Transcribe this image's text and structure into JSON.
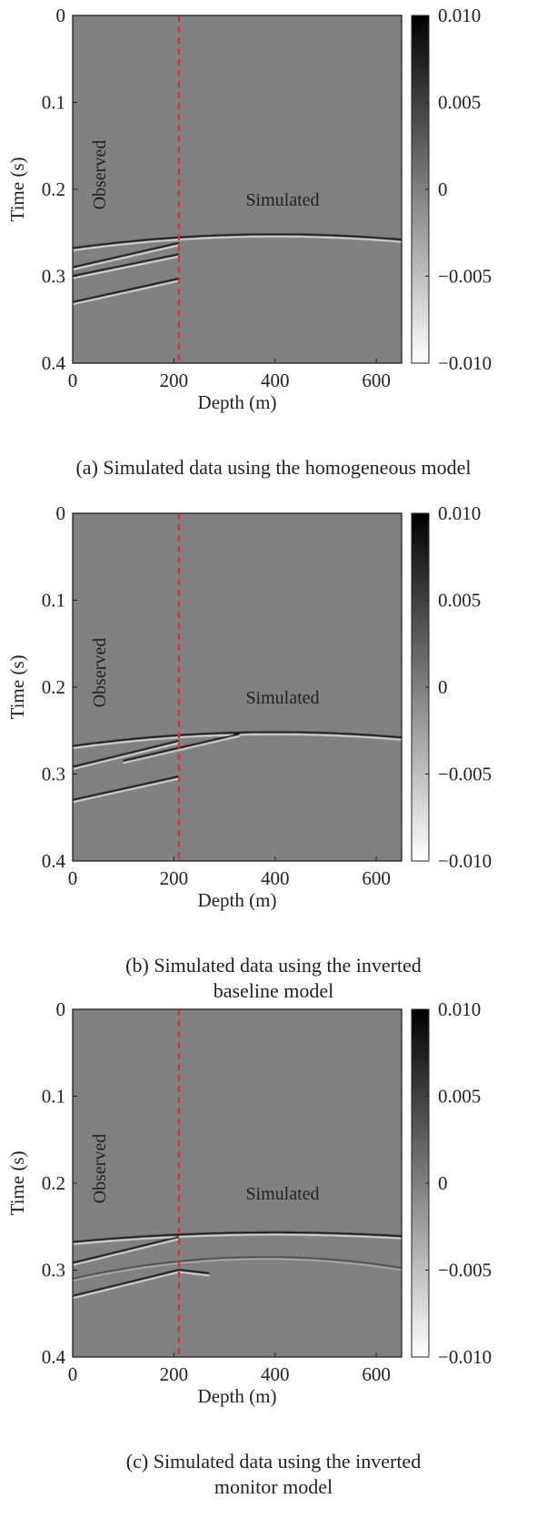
{
  "colors": {
    "background": "#808182",
    "axis": "#231f20",
    "marker": "#e0302a"
  },
  "chart_data": [
    {
      "type": "heatmap",
      "title": "",
      "xlabel": "Depth (m)",
      "ylabel": "Time (s)",
      "xlim": [
        0,
        650
      ],
      "ylim": [
        0.4,
        0
      ],
      "xticks": [
        "0",
        "200",
        "400",
        "600"
      ],
      "xtick_values": [
        0,
        200,
        400,
        600
      ],
      "yticks": [
        "0",
        "0.1",
        "0.2",
        "0.3",
        "0.4"
      ],
      "ytick_values": [
        0,
        0.1,
        0.2,
        0.3,
        0.4
      ],
      "colorbar": {
        "range": [
          -0.01,
          0.01
        ],
        "ticks": [
          "0.010",
          "0.005",
          "0",
          "−0.005",
          "−0.010"
        ],
        "tick_values": [
          0.01,
          0.005,
          0,
          -0.005,
          -0.01
        ]
      },
      "divider_depth": 210,
      "region_labels": {
        "left": "Observed",
        "right": "Simulated"
      },
      "events": [
        {
          "kind": "arc",
          "apex_depth": 400,
          "apex_time": 0.252,
          "edge_time": 0.268,
          "amplitude": 0.01
        },
        {
          "kind": "line",
          "from": [
            0,
            0.29
          ],
          "to": [
            210,
            0.262
          ]
        },
        {
          "kind": "line",
          "from": [
            0,
            0.33
          ],
          "to": [
            210,
            0.303
          ]
        },
        {
          "kind": "line",
          "from": [
            0,
            0.3
          ],
          "to": [
            210,
            0.275
          ]
        }
      ],
      "caption": "(a) Simulated data using the homogeneous model"
    },
    {
      "type": "heatmap",
      "title": "",
      "xlabel": "Depth (m)",
      "ylabel": "Time (s)",
      "xlim": [
        0,
        650
      ],
      "ylim": [
        0.4,
        0
      ],
      "xticks": [
        "0",
        "200",
        "400",
        "600"
      ],
      "xtick_values": [
        0,
        200,
        400,
        600
      ],
      "yticks": [
        "0",
        "0.1",
        "0.2",
        "0.3",
        "0.4"
      ],
      "ytick_values": [
        0,
        0.1,
        0.2,
        0.3,
        0.4
      ],
      "colorbar": {
        "range": [
          -0.01,
          0.01
        ],
        "ticks": [
          "0.010",
          "0.005",
          "0",
          "−0.005",
          "−0.010"
        ],
        "tick_values": [
          0.01,
          0.005,
          0,
          -0.005,
          -0.01
        ]
      },
      "divider_depth": 210,
      "region_labels": {
        "left": "Observed",
        "right": "Simulated"
      },
      "events": [
        {
          "kind": "arc",
          "apex_depth": 400,
          "apex_time": 0.252,
          "edge_time": 0.268,
          "amplitude": 0.01
        },
        {
          "kind": "line",
          "from": [
            0,
            0.292
          ],
          "to": [
            210,
            0.262
          ]
        },
        {
          "kind": "line",
          "from": [
            0,
            0.33
          ],
          "to": [
            210,
            0.303
          ]
        },
        {
          "kind": "line",
          "from": [
            100,
            0.285
          ],
          "to": [
            330,
            0.254
          ]
        }
      ],
      "caption_lines": [
        "(b) Simulated data using the inverted",
        "baseline model"
      ]
    },
    {
      "type": "heatmap",
      "title": "",
      "xlabel": "Depth (m)",
      "ylabel": "Time (s)",
      "xlim": [
        0,
        650
      ],
      "ylim": [
        0.4,
        0
      ],
      "xticks": [
        "0",
        "200",
        "400",
        "600"
      ],
      "xtick_values": [
        0,
        200,
        400,
        600
      ],
      "yticks": [
        "0",
        "0.1",
        "0.2",
        "0.3",
        "0.4"
      ],
      "ytick_values": [
        0,
        0.1,
        0.2,
        0.3,
        0.4
      ],
      "colorbar": {
        "range": [
          -0.01,
          0.01
        ],
        "ticks": [
          "0.010",
          "0.005",
          "0",
          "−0.005",
          "−0.010"
        ],
        "tick_values": [
          0.01,
          0.005,
          0,
          -0.005,
          -0.01
        ]
      },
      "divider_depth": 210,
      "region_labels": {
        "left": "Observed",
        "right": "Simulated"
      },
      "events": [
        {
          "kind": "arc",
          "apex_depth": 400,
          "apex_time": 0.257,
          "edge_time": 0.268,
          "amplitude": 0.01
        },
        {
          "kind": "line",
          "from": [
            0,
            0.292
          ],
          "to": [
            210,
            0.262
          ]
        },
        {
          "kind": "line",
          "from": [
            0,
            0.33
          ],
          "to": [
            210,
            0.3
          ]
        },
        {
          "kind": "arc",
          "apex_depth": 380,
          "apex_time": 0.285,
          "edge_time": 0.31,
          "amplitude": 0.005
        },
        {
          "kind": "line",
          "from": [
            210,
            0.3
          ],
          "to": [
            270,
            0.304
          ]
        }
      ],
      "caption_lines": [
        "(c) Simulated data using the inverted",
        "monitor model"
      ]
    }
  ]
}
